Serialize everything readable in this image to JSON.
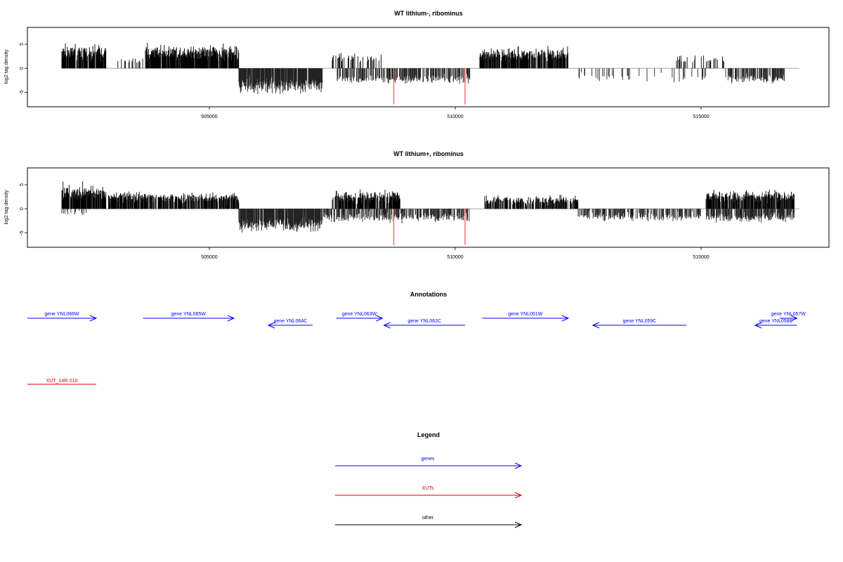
{
  "colors": {
    "gene": "#0000ff",
    "xut": "#cc0000",
    "other": "#000000",
    "marker": "#ff6666",
    "baseline": "#999999"
  },
  "chart_data": [
    {
      "type": "bar",
      "title": "WT lithium-, ribominus",
      "ylabel": "log2 tag density",
      "xlim": [
        501300,
        517600
      ],
      "ylim": [
        -8,
        8.5
      ],
      "xticks": [
        505000,
        510000,
        515000
      ],
      "yticks": [
        5,
        0,
        -5
      ],
      "markers": [
        508750,
        510200
      ],
      "plus_segments": [
        {
          "from": 502000,
          "to": 502900,
          "density": 0.9,
          "mean": 3.4,
          "var": 1.6
        },
        {
          "from": 503100,
          "to": 503750,
          "density": 0.2,
          "mean": 1.6,
          "var": 0.6
        },
        {
          "from": 503700,
          "to": 505600,
          "density": 0.9,
          "mean": 3.4,
          "var": 1.5
        },
        {
          "from": 507500,
          "to": 508500,
          "density": 0.3,
          "mean": 2.2,
          "var": 0.9
        },
        {
          "from": 510500,
          "to": 512300,
          "density": 0.8,
          "mean": 3.0,
          "var": 1.3
        },
        {
          "from": 514500,
          "to": 515500,
          "density": 0.18,
          "mean": 1.8,
          "var": 0.8
        }
      ],
      "minus_segments": [
        {
          "from": 505600,
          "to": 507300,
          "density": 0.9,
          "mean": 3.6,
          "var": 1.5
        },
        {
          "from": 507600,
          "to": 510300,
          "density": 0.5,
          "mean": 2.3,
          "var": 1.0
        },
        {
          "from": 512500,
          "to": 515200,
          "density": 0.1,
          "mean": 1.9,
          "var": 1.0
        },
        {
          "from": 515500,
          "to": 516700,
          "density": 0.6,
          "mean": 2.3,
          "var": 0.9
        }
      ]
    },
    {
      "type": "bar",
      "title": "WT lithium+, ribominus",
      "ylabel": "log2 tag density",
      "xlim": [
        501300,
        517600
      ],
      "ylim": [
        -8,
        8.5
      ],
      "xticks": [
        505000,
        510000,
        515000
      ],
      "yticks": [
        5,
        0,
        -5
      ],
      "markers": [
        508750,
        510200
      ],
      "plus_segments": [
        {
          "from": 502000,
          "to": 502900,
          "density": 0.9,
          "mean": 3.6,
          "var": 1.7
        },
        {
          "from": 502950,
          "to": 505600,
          "density": 0.8,
          "mean": 2.4,
          "var": 1.0
        },
        {
          "from": 507500,
          "to": 508900,
          "density": 0.8,
          "mean": 2.5,
          "var": 1.2
        },
        {
          "from": 510600,
          "to": 512500,
          "density": 0.6,
          "mean": 1.8,
          "var": 0.9
        },
        {
          "from": 515100,
          "to": 516900,
          "density": 0.8,
          "mean": 2.6,
          "var": 1.2
        }
      ],
      "minus_segments": [
        {
          "from": 502000,
          "to": 502500,
          "density": 0.2,
          "mean": 0.9,
          "var": 0.5
        },
        {
          "from": 505600,
          "to": 507300,
          "density": 0.9,
          "mean": 3.3,
          "var": 1.4
        },
        {
          "from": 507300,
          "to": 510300,
          "density": 0.6,
          "mean": 1.8,
          "var": 0.9
        },
        {
          "from": 512500,
          "to": 515000,
          "density": 0.5,
          "mean": 1.7,
          "var": 0.9
        },
        {
          "from": 515100,
          "to": 516900,
          "density": 0.7,
          "mean": 1.8,
          "var": 0.9
        }
      ]
    }
  ],
  "annotations": {
    "title": "Annotations",
    "genes": [
      {
        "label": "gene YNL066W",
        "start": 501300,
        "end": 502700,
        "strand": "+"
      },
      {
        "label": "gene YNL065W",
        "start": 503650,
        "end": 505500,
        "strand": "+"
      },
      {
        "label": "gene YNL064C",
        "start": 506200,
        "end": 507100,
        "strand": "-"
      },
      {
        "label": "gene YNL063W",
        "start": 507580,
        "end": 508520,
        "strand": "+"
      },
      {
        "label": "gene YNL062C",
        "start": 508550,
        "end": 510200,
        "strand": "-"
      },
      {
        "label": "gene YNL061W",
        "start": 510550,
        "end": 512300,
        "strand": "+"
      },
      {
        "label": "gene YNL059C",
        "start": 512800,
        "end": 514700,
        "strand": "-"
      },
      {
        "label": "gene YNL057W",
        "start": 516600,
        "end": 516950,
        "strand": "+"
      },
      {
        "label": "gene YNL058C",
        "start": 516100,
        "end": 516950,
        "strand": "-"
      }
    ],
    "xuts": [
      {
        "label": "XUT_14R-210",
        "start": 501300,
        "end": 502700
      }
    ]
  },
  "legend": {
    "title": "Legend",
    "entries": [
      {
        "label": "genes",
        "color_key": "gene"
      },
      {
        "label": "XUTs",
        "color_key": "xut"
      },
      {
        "label": "other",
        "color_key": "other"
      }
    ]
  }
}
